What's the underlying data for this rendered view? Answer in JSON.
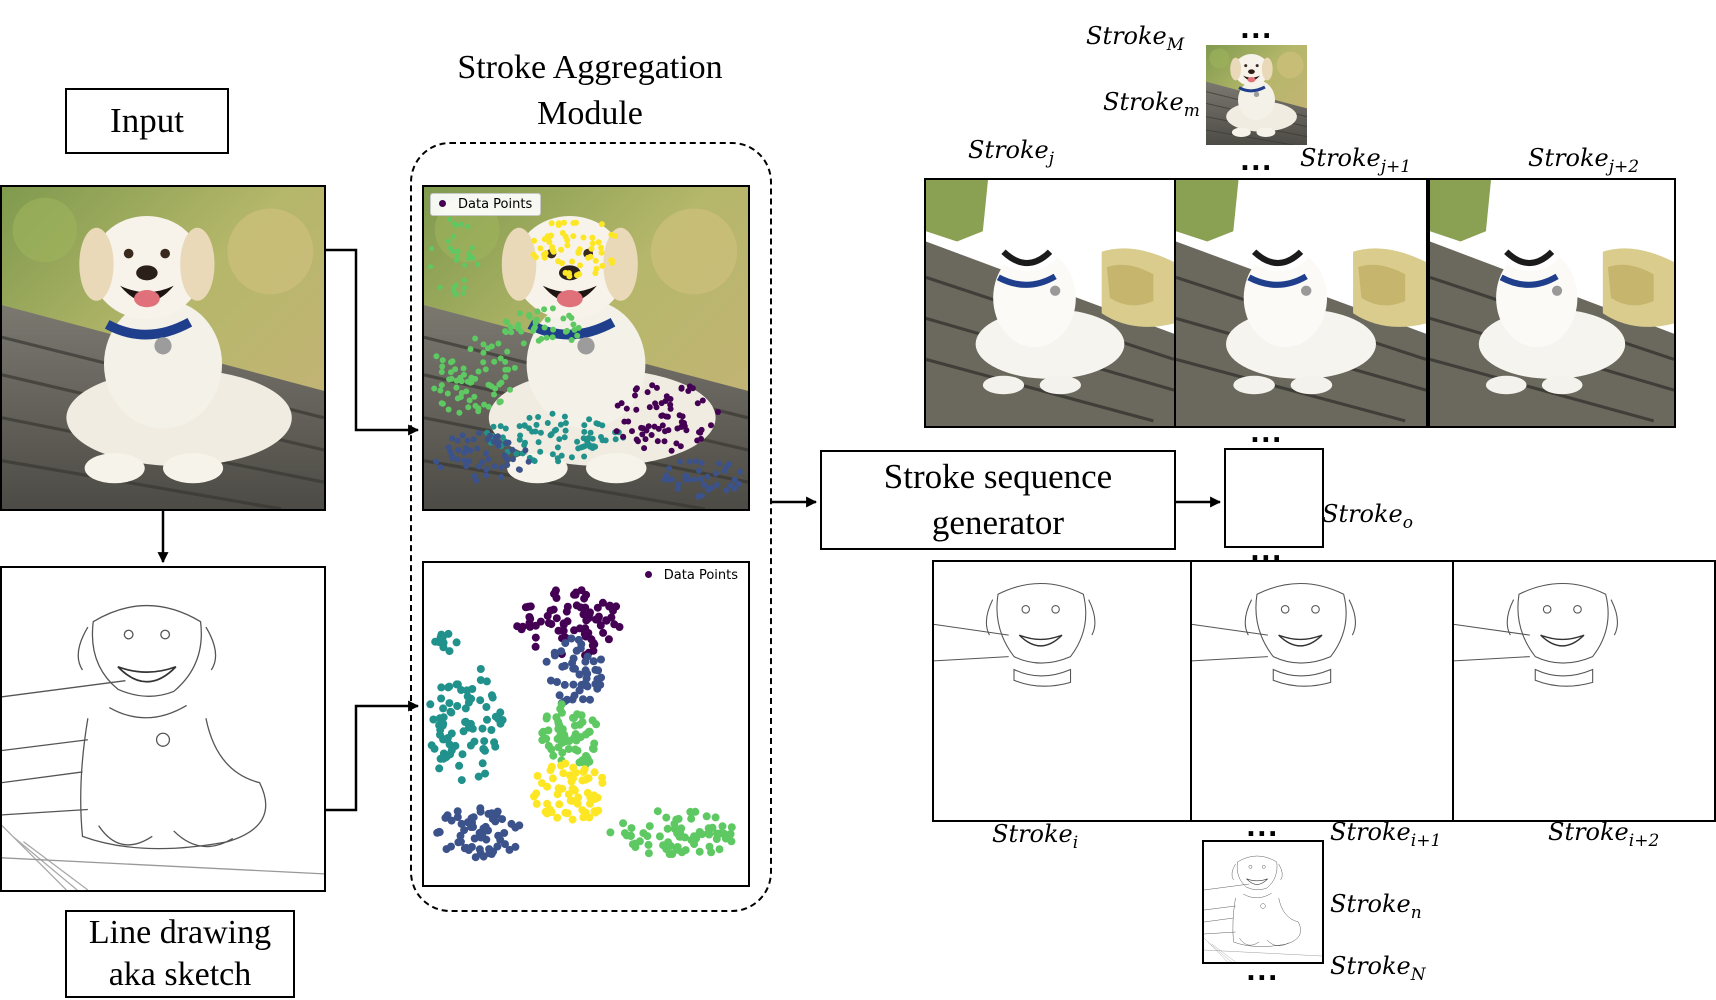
{
  "input_label": "Input",
  "module_title": [
    "Stroke Aggregation",
    "Module"
  ],
  "sketch_label": [
    "Line drawing",
    "aka sketch"
  ],
  "generator_label": [
    "Stroke sequence",
    "generator"
  ],
  "legend_label": "Data Points",
  "ellipsis": "...",
  "stroke_labels": {
    "M": {
      "base": "Stroke",
      "sub": "M"
    },
    "m": {
      "base": "Stroke",
      "sub": "m"
    },
    "j": {
      "base": "Stroke",
      "sub": "j"
    },
    "j1": {
      "base": "Stroke",
      "sub": "j+1"
    },
    "j2": {
      "base": "Stroke",
      "sub": "j+2"
    },
    "o": {
      "base": "Stroke",
      "sub": "o"
    },
    "i": {
      "base": "Stroke",
      "sub": "i"
    },
    "i1": {
      "base": "Stroke",
      "sub": "i+1"
    },
    "i2": {
      "base": "Stroke",
      "sub": "i+2"
    },
    "n": {
      "base": "Stroke",
      "sub": "n"
    },
    "N": {
      "base": "Stroke",
      "sub": "N"
    }
  },
  "colors": {
    "viridis": [
      "#440154",
      "#3b528b",
      "#21918c",
      "#5ec962",
      "#fde725"
    ],
    "sky": "#9db86a",
    "bench": "#6d6a60",
    "dog": "#f1ede2"
  }
}
